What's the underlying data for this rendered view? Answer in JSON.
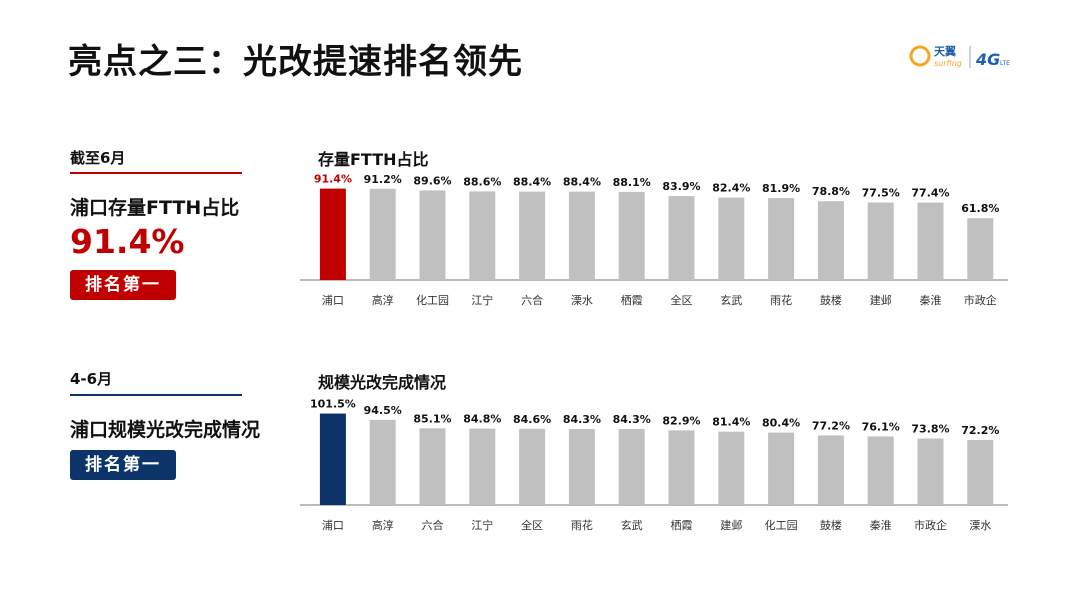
{
  "title": "亮点之三：光改提速排名领先",
  "logo": {
    "brand_cn": "天翼",
    "brand_en": "surfing",
    "network": "4G",
    "network_sub": "LTE"
  },
  "colors": {
    "highlight_red": "#c00000",
    "highlight_navy": "#0d3468",
    "bar_gray": "#c0c0c0",
    "axis_gray": "#a6a6a6"
  },
  "section1": {
    "period": "截至6月",
    "heading": "浦口存量FTTH占比",
    "value": "91.4%",
    "rank": "排名第一"
  },
  "section2": {
    "period": "4-6月",
    "heading": "浦口规模光改完成情况",
    "rank": "排名第一"
  },
  "chart_data": [
    {
      "type": "bar",
      "title": "存量FTTH占比",
      "categories": [
        "浦口",
        "高淳",
        "化工园",
        "江宁",
        "六合",
        "溧水",
        "栖霞",
        "全区",
        "玄武",
        "雨花",
        "鼓楼",
        "建邺",
        "秦淮",
        "市政企"
      ],
      "values": [
        91.4,
        91.2,
        89.6,
        88.6,
        88.4,
        88.4,
        88.1,
        83.9,
        82.4,
        81.9,
        78.8,
        77.5,
        77.4,
        61.8
      ],
      "labels": [
        "91.4%",
        "91.2%",
        "89.6%",
        "88.6%",
        "88.4%",
        "88.4%",
        "88.1%",
        "83.9%",
        "82.4%",
        "81.9%",
        "78.8%",
        "77.5%",
        "77.4%",
        "61.8%"
      ],
      "ylim": [
        0,
        100
      ],
      "grid": false,
      "highlight_index": 0
    },
    {
      "type": "bar",
      "title": "规模光改完成情况",
      "categories": [
        "浦口",
        "高淳",
        "六合",
        "江宁",
        "全区",
        "雨花",
        "玄武",
        "栖霞",
        "建邺",
        "化工园",
        "鼓楼",
        "秦淮",
        "市政企",
        "溧水"
      ],
      "values": [
        101.5,
        94.5,
        85.1,
        84.8,
        84.6,
        84.3,
        84.3,
        82.9,
        81.4,
        80.4,
        77.2,
        76.1,
        73.8,
        72.2
      ],
      "labels": [
        "101.5%",
        "94.5%",
        "85.1%",
        "84.8%",
        "84.6%",
        "84.3%",
        "84.3%",
        "82.9%",
        "81.4%",
        "80.4%",
        "77.2%",
        "76.1%",
        "73.8%",
        "72.2%"
      ],
      "ylim": [
        0,
        111
      ],
      "grid": false,
      "highlight_index": 0
    }
  ]
}
